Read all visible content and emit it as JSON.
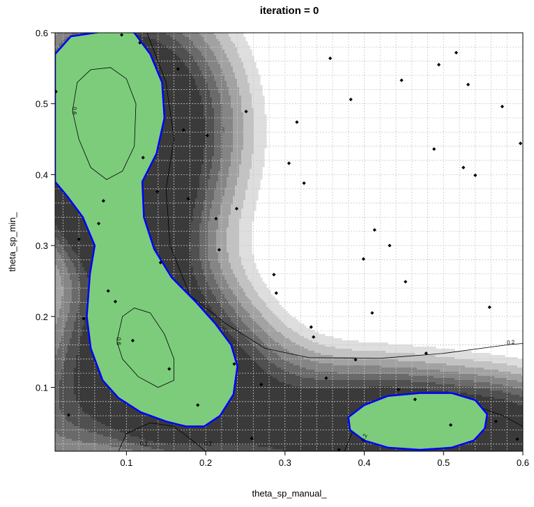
{
  "chart_data": {
    "type": "contour",
    "title": "iteration =  0",
    "xlabel": "theta_sp_manual_",
    "ylabel": "theta_sp_min_",
    "xlim": [
      0.01,
      0.6
    ],
    "ylim": [
      0.01,
      0.6
    ],
    "x_ticks": [
      "0.1",
      "0.2",
      "0.3",
      "0.4",
      "0.5",
      "0.6"
    ],
    "y_ticks": [
      "0.1",
      "0.2",
      "0.3",
      "0.4",
      "0.5",
      "0.6"
    ],
    "grid": true,
    "colors": {
      "band_levels": [
        "#3a3a3a",
        "#505050",
        "#6a6a6a",
        "#858585",
        "#a2a2a2",
        "#c2c2c2",
        "#dedede",
        "#ffffff"
      ],
      "feasible": "#7ccc7c",
      "boundary": "#0000ff",
      "points": "#000000"
    },
    "contour_labels": [
      {
        "text": "0.6",
        "x": 0.032,
        "y": 0.49,
        "angle": 90
      },
      {
        "text": "0.6",
        "x": 0.088,
        "y": 0.165,
        "angle": 90
      },
      {
        "text": "0.2",
        "x": 0.585,
        "y": 0.161,
        "angle": -5
      },
      {
        "text": "0.2",
        "x": 0.122,
        "y": 0.018,
        "angle": 0
      },
      {
        "text": "0.2",
        "x": 0.203,
        "y": 0.018,
        "angle": 0
      },
      {
        "text": "0.2",
        "x": 0.402,
        "y": 0.028,
        "angle": -70
      },
      {
        "text": "0.2",
        "x": 0.608,
        "y": 0.028,
        "angle": -70
      }
    ],
    "points": [
      [
        0.011,
        0.517
      ],
      [
        0.027,
        0.061
      ],
      [
        0.04,
        0.309
      ],
      [
        0.046,
        0.197
      ],
      [
        0.065,
        0.331
      ],
      [
        0.071,
        0.363
      ],
      [
        0.077,
        0.236
      ],
      [
        0.086,
        0.221
      ],
      [
        0.094,
        0.597
      ],
      [
        0.108,
        0.166
      ],
      [
        0.117,
        0.586
      ],
      [
        0.121,
        0.424
      ],
      [
        0.139,
        0.376
      ],
      [
        0.143,
        0.276
      ],
      [
        0.154,
        0.126
      ],
      [
        0.165,
        0.549
      ],
      [
        0.172,
        0.463
      ],
      [
        0.19,
        0.075
      ],
      [
        0.178,
        0.366
      ],
      [
        0.202,
        0.455
      ],
      [
        0.213,
        0.338
      ],
      [
        0.217,
        0.294
      ],
      [
        0.236,
        0.133
      ],
      [
        0.239,
        0.352
      ],
      [
        0.251,
        0.489
      ],
      [
        0.258,
        0.028
      ],
      [
        0.27,
        0.104
      ],
      [
        0.286,
        0.259
      ],
      [
        0.289,
        0.233
      ],
      [
        0.305,
        0.416
      ],
      [
        0.315,
        0.474
      ],
      [
        0.324,
        0.388
      ],
      [
        0.333,
        0.185
      ],
      [
        0.336,
        0.171
      ],
      [
        0.357,
        0.564
      ],
      [
        0.352,
        0.113
      ],
      [
        0.368,
        0.012
      ],
      [
        0.383,
        0.506
      ],
      [
        0.389,
        0.139
      ],
      [
        0.399,
        0.281
      ],
      [
        0.41,
        0.205
      ],
      [
        0.413,
        0.322
      ],
      [
        0.432,
        0.3
      ],
      [
        0.443,
        0.097
      ],
      [
        0.447,
        0.533
      ],
      [
        0.452,
        0.249
      ],
      [
        0.464,
        0.083
      ],
      [
        0.478,
        0.148
      ],
      [
        0.488,
        0.436
      ],
      [
        0.494,
        0.555
      ],
      [
        0.509,
        0.047
      ],
      [
        0.516,
        0.572
      ],
      [
        0.525,
        0.41
      ],
      [
        0.531,
        0.527
      ],
      [
        0.54,
        0.399
      ],
      [
        0.558,
        0.213
      ],
      [
        0.566,
        0.052
      ],
      [
        0.574,
        0.496
      ],
      [
        0.593,
        0.027
      ],
      [
        0.597,
        0.444
      ]
    ]
  }
}
